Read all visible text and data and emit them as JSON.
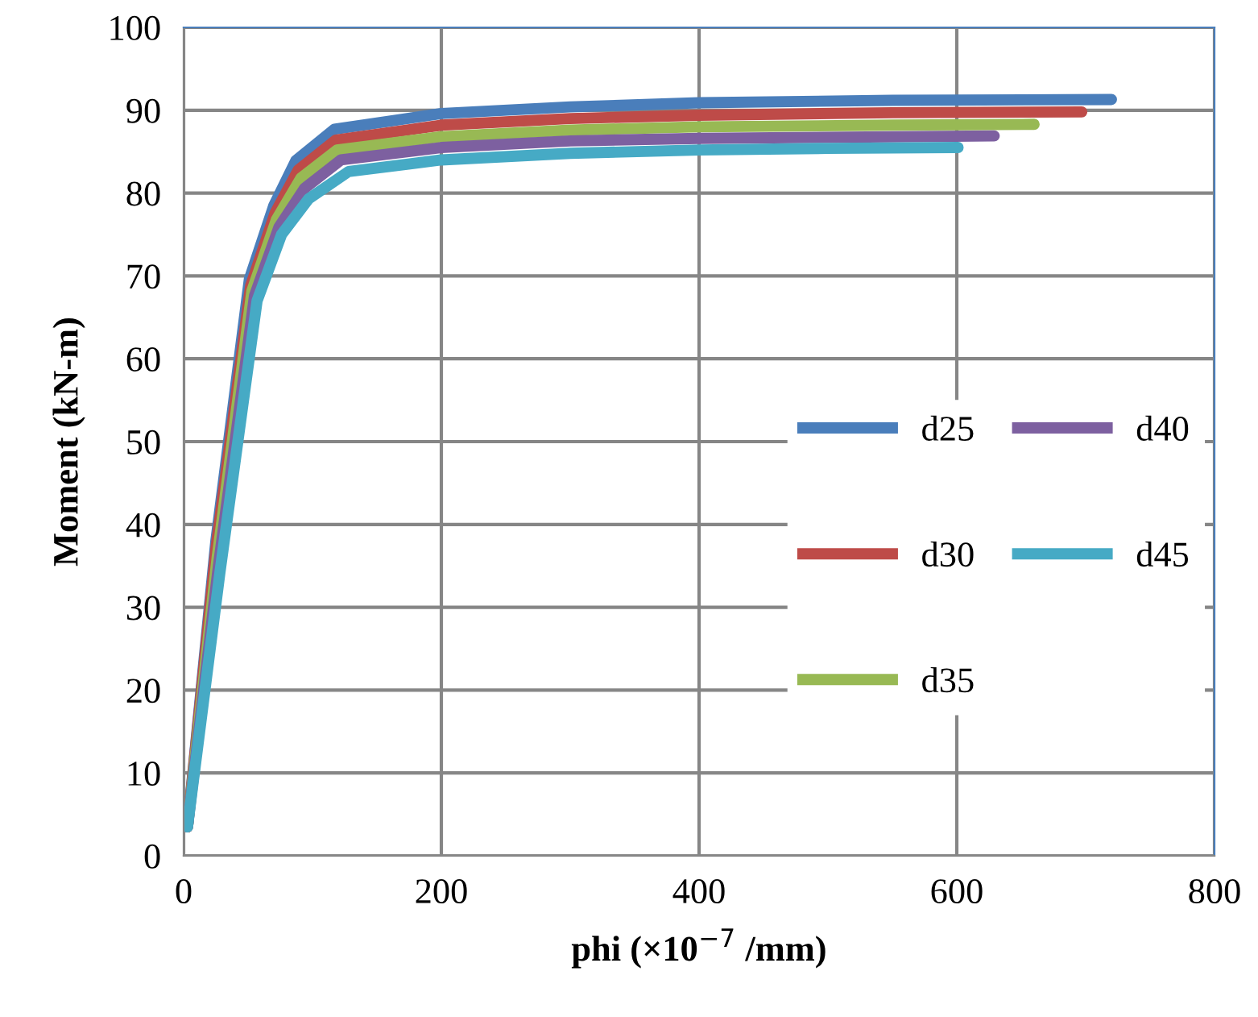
{
  "chart_data": {
    "type": "line",
    "xlabel": "phi (×10$^{−7}$ /mm)",
    "ylabel": "Moment (kN-m)",
    "xlim": [
      0,
      800
    ],
    "xticks": [
      0,
      200,
      400,
      600,
      800
    ],
    "ylim": [
      0,
      100
    ],
    "yticks": [
      0,
      10,
      20,
      30,
      40,
      50,
      60,
      70,
      80,
      90,
      100
    ],
    "grid": true,
    "legend": "right",
    "marker": "none",
    "line_style": "solid",
    "series": [
      {
        "name": "d25",
        "color": "#4a7ebb",
        "x": [
          3,
          25,
          51,
          70,
          87,
          117,
          200,
          300,
          400,
          550,
          720
        ],
        "values": [
          3.5,
          38,
          69.6,
          78.5,
          83.9,
          87.7,
          89.6,
          90.4,
          90.9,
          91.2,
          91.3
        ]
      },
      {
        "name": "d30",
        "color": "#be4b48",
        "x": [
          3,
          25,
          52,
          71,
          89,
          118,
          200,
          300,
          400,
          550,
          697
        ],
        "values": [
          3.5,
          37,
          68.8,
          77.6,
          82.8,
          86.4,
          88.2,
          89,
          89.4,
          89.7,
          89.8
        ]
      },
      {
        "name": "d35",
        "color": "#98b954",
        "x": [
          3,
          26,
          53,
          72,
          91,
          119,
          200,
          300,
          400,
          550,
          660
        ],
        "values": [
          3.5,
          36,
          68.2,
          76.8,
          81.8,
          85.2,
          86.8,
          87.6,
          88,
          88.2,
          88.3
        ]
      },
      {
        "name": "d40",
        "color": "#7d60a0",
        "x": [
          3,
          27,
          55,
          74,
          94,
          122,
          200,
          300,
          400,
          550,
          629
        ],
        "values": [
          3.5,
          35,
          67.6,
          75.9,
          80.6,
          84,
          85.5,
          86.3,
          86.6,
          86.8,
          86.9
        ]
      },
      {
        "name": "d45",
        "color": "#46aac5",
        "x": [
          3,
          28,
          57,
          76,
          97,
          128,
          200,
          300,
          400,
          500,
          601
        ],
        "values": [
          3.5,
          34,
          67,
          75,
          79.3,
          82.6,
          84,
          84.8,
          85.2,
          85.4,
          85.5
        ]
      }
    ]
  }
}
